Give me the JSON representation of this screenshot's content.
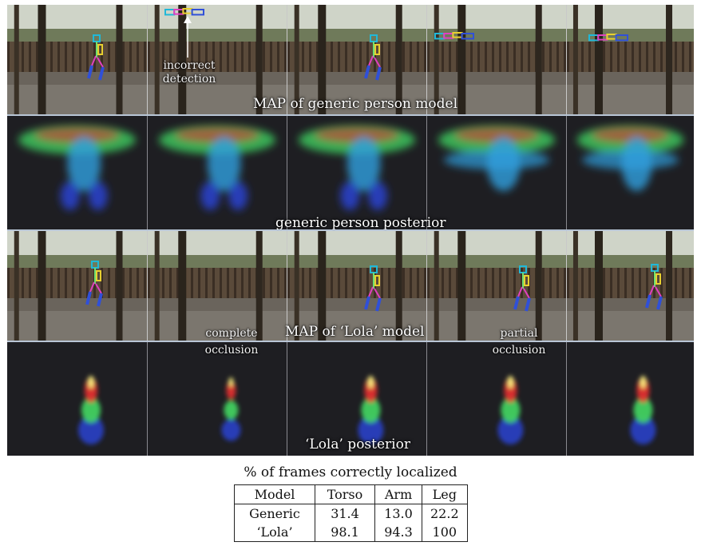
{
  "rows": [
    {
      "id": "map-generic",
      "caption": "MAP of generic person model"
    },
    {
      "id": "posterior-generic",
      "caption": "generic person posterior"
    },
    {
      "id": "map-lola",
      "caption": "MAP of ‘Lola’ model"
    },
    {
      "id": "posterior-lola",
      "caption": "‘Lola’ posterior"
    }
  ],
  "annotations": {
    "incorrect_detection": [
      "incorrect",
      "detection"
    ],
    "complete_occlusion": [
      "complete",
      "occlusion"
    ],
    "partial_occlusion": [
      "partial",
      "occlusion"
    ]
  },
  "table": {
    "title": "% of frames correctly localized",
    "columns": [
      "Model",
      "Torso",
      "Arm",
      "Leg"
    ],
    "rows": [
      [
        "Generic",
        "31.4",
        "13.0",
        "22.2"
      ],
      [
        "‘Lola’",
        "98.1",
        "94.3",
        "100"
      ]
    ]
  },
  "colors": {
    "torso": "#20b8d8",
    "arm": "#e8d030",
    "forearm": "#e040c0",
    "leg": "#3050d8",
    "posterior_blue": "#2a40c8",
    "posterior_green": "#40d060",
    "posterior_red": "#e03030"
  }
}
